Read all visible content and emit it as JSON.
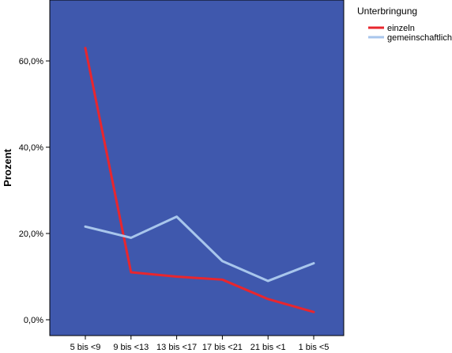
{
  "chart_data": {
    "type": "line",
    "title": "",
    "xlabel": "",
    "ylabel": "Prozent",
    "categories": [
      "5 bis <9",
      "9 bis <13",
      "13 bis <17",
      "17 bis <21",
      "21 bis <1",
      "1 bis <5"
    ],
    "ylim": [
      0,
      70
    ],
    "yticks": [
      0,
      20,
      40,
      60
    ],
    "ytick_labels": [
      "0,0%",
      "20,0%",
      "40,0%",
      "60,0%"
    ],
    "grid": false,
    "legend_position": "top-right",
    "legend_title": "Unterbringung",
    "plot_background": "#3f58ad",
    "series": [
      {
        "name": "einzeln",
        "color": "#e8262e",
        "values": [
          63.0,
          11.0,
          10.0,
          9.3,
          4.8,
          1.8
        ]
      },
      {
        "name": "gemeinschaftlich",
        "color": "#a8c6ec",
        "values": [
          21.6,
          19.0,
          23.9,
          13.6,
          9.0,
          13.1
        ]
      }
    ]
  }
}
